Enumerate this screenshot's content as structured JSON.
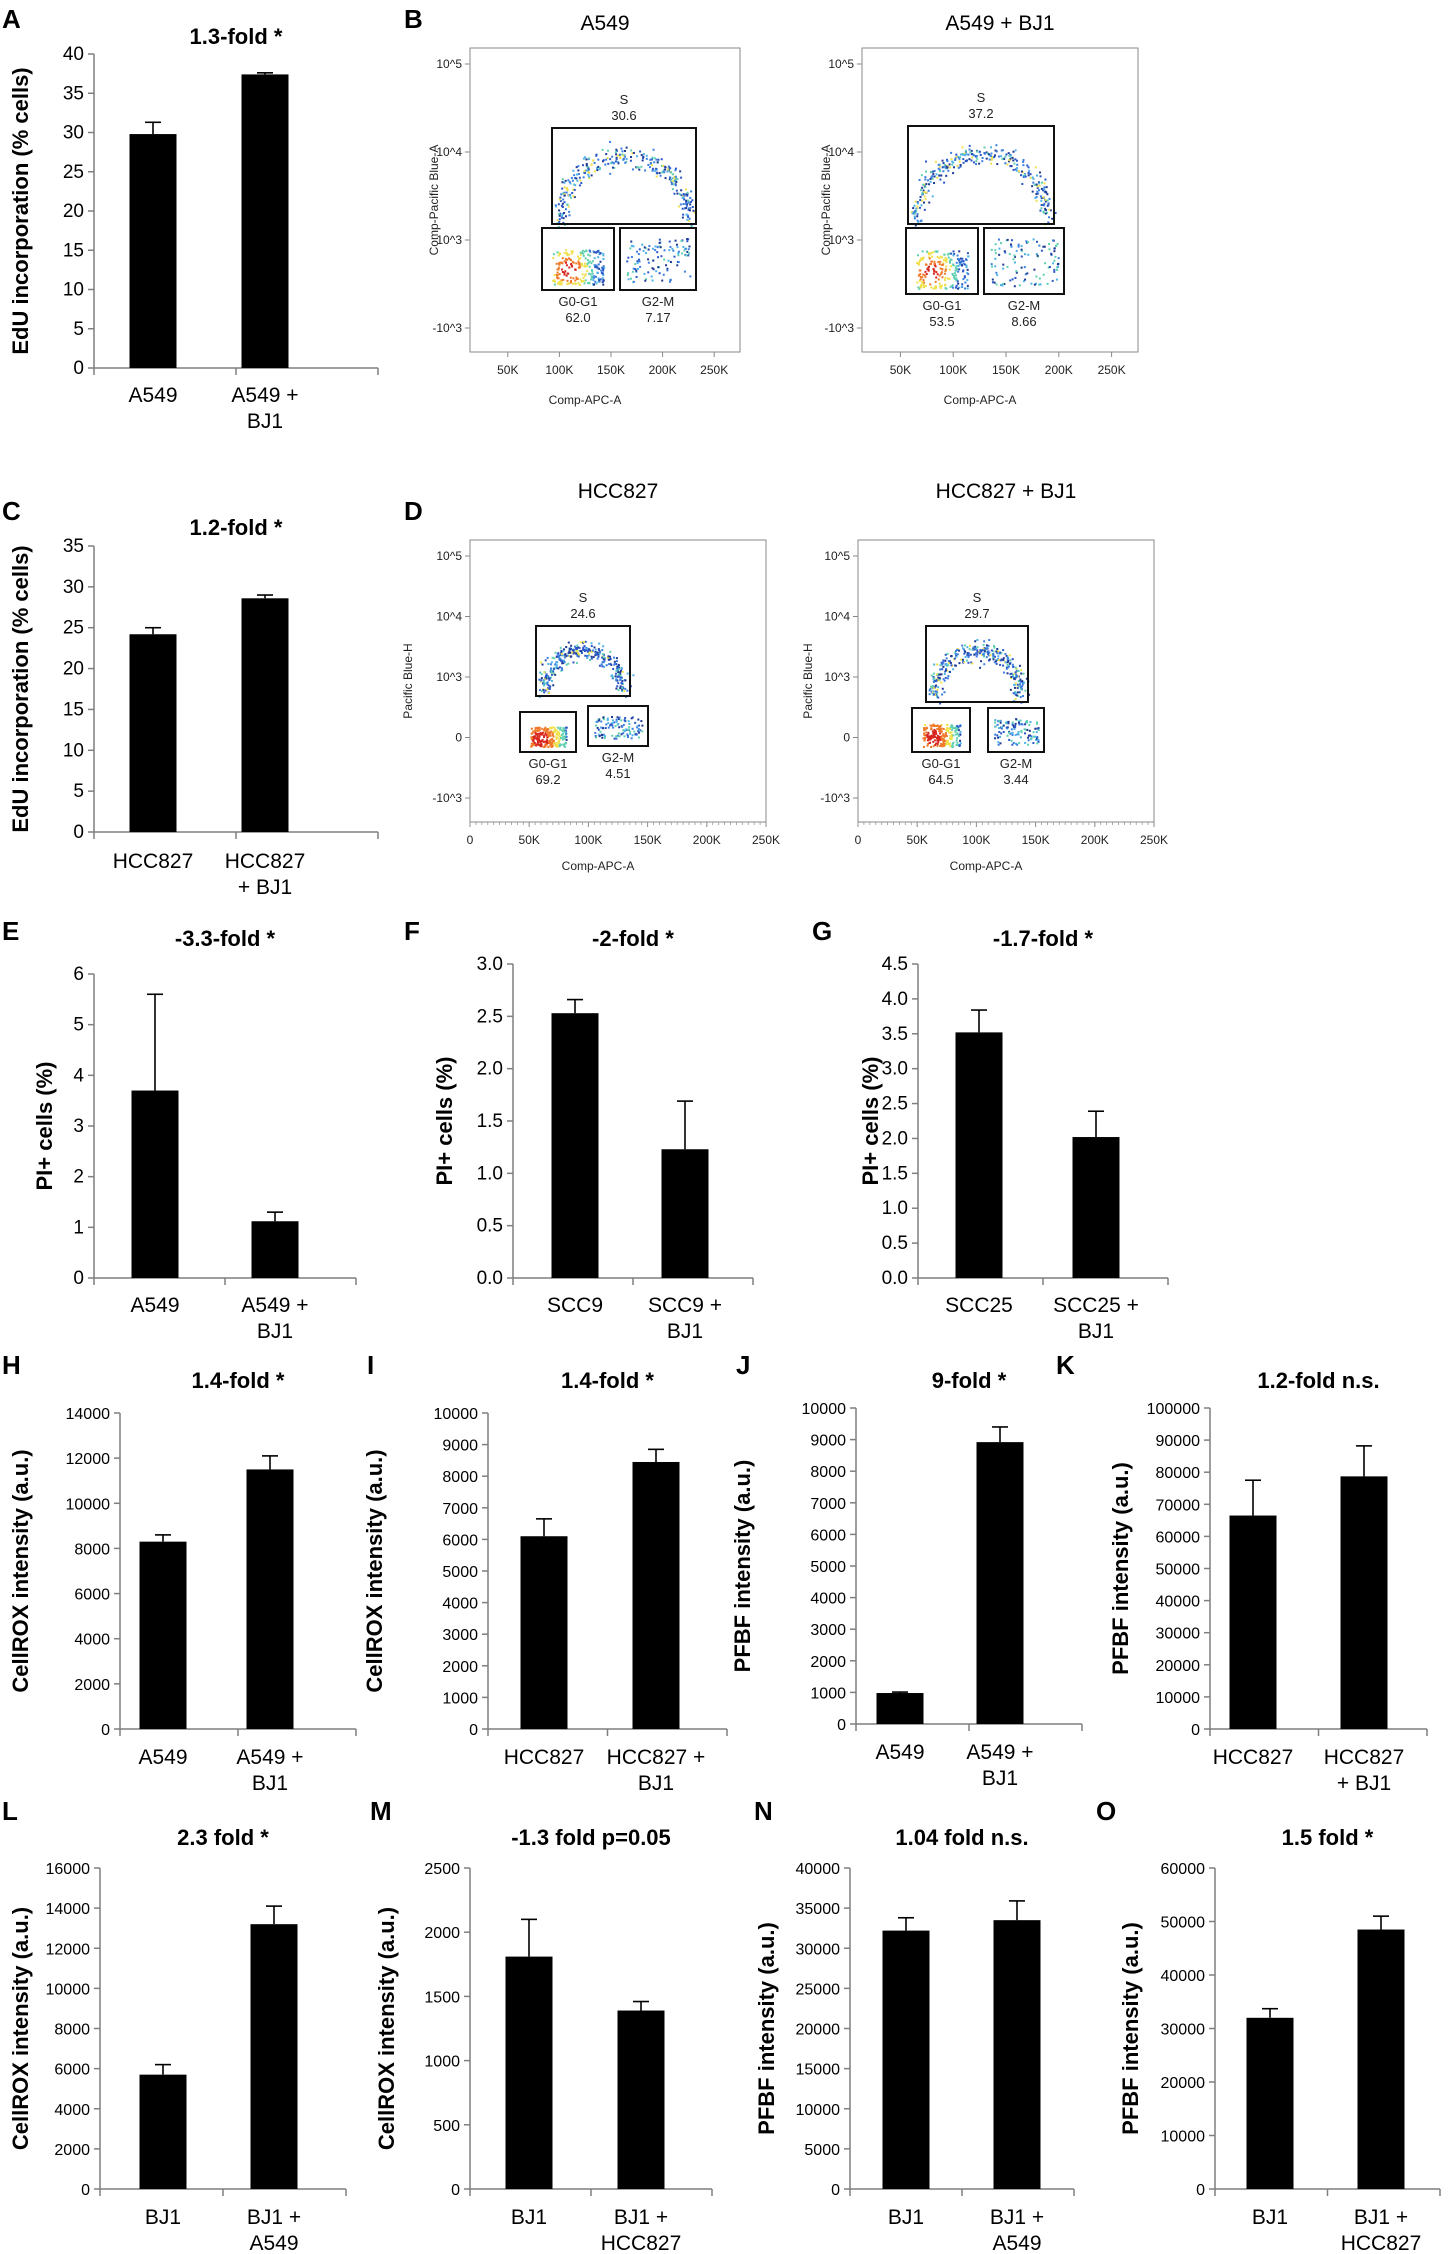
{
  "figure": {
    "panel_labels": [
      "A",
      "B",
      "C",
      "D",
      "E",
      "F",
      "G",
      "H",
      "I",
      "J",
      "K",
      "L",
      "M",
      "N",
      "O"
    ]
  },
  "chart_data": [
    {
      "id": "A",
      "type": "bar",
      "title": "1.3-fold *",
      "ylabel": "EdU incorporation (% cells)",
      "categories": [
        [
          "A549"
        ],
        [
          "A549 +",
          "BJ1"
        ]
      ],
      "values": [
        29.8,
        37.4
      ],
      "errors": [
        1.5,
        0.2
      ],
      "ylim": [
        0,
        40
      ],
      "yticks": [
        0,
        5,
        10,
        15,
        20,
        25,
        30,
        35,
        40
      ],
      "decimals": 0
    },
    {
      "id": "C",
      "type": "bar",
      "title": "1.2-fold *",
      "ylabel": "EdU incorporation (% cells)",
      "categories": [
        [
          "HCC827"
        ],
        [
          "HCC827",
          "+ BJ1"
        ]
      ],
      "values": [
        24.2,
        28.6
      ],
      "errors": [
        0.8,
        0.4
      ],
      "ylim": [
        0,
        35
      ],
      "yticks": [
        0,
        5,
        10,
        15,
        20,
        25,
        30,
        35
      ],
      "decimals": 0
    },
    {
      "id": "E",
      "type": "bar",
      "title": "-3.3-fold *",
      "ylabel": "PI+ cells (%)",
      "categories": [
        [
          "A549"
        ],
        [
          "A549 +",
          "BJ1"
        ]
      ],
      "values": [
        3.7,
        1.12
      ],
      "errors": [
        1.9,
        0.18
      ],
      "ylim": [
        0,
        6
      ],
      "yticks": [
        0,
        1,
        2,
        3,
        4,
        5,
        6
      ],
      "decimals": 0
    },
    {
      "id": "F",
      "type": "bar",
      "title": "-2-fold *",
      "ylabel": "PI+ cells (%)",
      "categories": [
        [
          "SCC9"
        ],
        [
          "SCC9 +",
          "BJ1"
        ]
      ],
      "values": [
        2.53,
        1.23
      ],
      "errors": [
        0.13,
        0.46
      ],
      "ylim": [
        0,
        3
      ],
      "yticks": [
        0,
        0.5,
        1,
        1.5,
        2,
        2.5,
        3
      ],
      "decimals": 1
    },
    {
      "id": "G",
      "type": "bar",
      "title": "-1.7-fold *",
      "ylabel": "PI+ cells (%)",
      "categories": [
        [
          "SCC25"
        ],
        [
          "SCC25 +",
          "BJ1"
        ]
      ],
      "values": [
        3.52,
        2.02
      ],
      "errors": [
        0.32,
        0.37
      ],
      "ylim": [
        0,
        4.5
      ],
      "yticks": [
        0,
        0.5,
        1,
        1.5,
        2,
        2.5,
        3,
        3.5,
        4,
        4.5
      ],
      "decimals": 1
    },
    {
      "id": "H",
      "type": "bar",
      "title": "1.4-fold *",
      "ylabel": "CellROX intensity (a.u.)",
      "categories": [
        [
          "A549"
        ],
        [
          "A549 +",
          "BJ1"
        ]
      ],
      "values": [
        8300,
        11500
      ],
      "errors": [
        300,
        600
      ],
      "ylim": [
        0,
        14000
      ],
      "yticks": [
        0,
        2000,
        4000,
        6000,
        8000,
        10000,
        12000,
        14000
      ],
      "decimals": 0
    },
    {
      "id": "I",
      "type": "bar",
      "title": "1.4-fold *",
      "ylabel": "CellROX intensity (a.u.)",
      "categories": [
        [
          "HCC827"
        ],
        [
          "HCC827 +",
          "BJ1"
        ]
      ],
      "values": [
        6100,
        8450
      ],
      "errors": [
        550,
        400
      ],
      "ylim": [
        0,
        10000
      ],
      "yticks": [
        0,
        1000,
        2000,
        3000,
        4000,
        5000,
        6000,
        7000,
        8000,
        9000,
        10000
      ],
      "decimals": 0
    },
    {
      "id": "J",
      "type": "bar",
      "title": "9-fold *",
      "ylabel": "PFBF intensity (a.u.)",
      "categories": [
        [
          "A549"
        ],
        [
          "A549 +",
          "BJ1"
        ]
      ],
      "values": [
        980,
        8920
      ],
      "errors": [
        30,
        480
      ],
      "ylim": [
        0,
        10000
      ],
      "yticks": [
        0,
        1000,
        2000,
        3000,
        4000,
        5000,
        6000,
        7000,
        8000,
        9000,
        10000
      ],
      "decimals": 0
    },
    {
      "id": "K",
      "type": "bar",
      "title": "1.2-fold  n.s.",
      "ylabel": "PFBF intensity (a.u.)",
      "categories": [
        [
          "HCC827"
        ],
        [
          "HCC827",
          "+ BJ1"
        ]
      ],
      "values": [
        66500,
        78700
      ],
      "errors": [
        11000,
        9500
      ],
      "ylim": [
        0,
        100000
      ],
      "yticks": [
        0,
        10000,
        20000,
        30000,
        40000,
        50000,
        60000,
        70000,
        80000,
        90000,
        100000
      ],
      "decimals": 0
    },
    {
      "id": "L",
      "type": "bar",
      "title": "2.3 fold *",
      "ylabel": "CellROX intensity (a.u.)",
      "categories": [
        [
          "BJ1"
        ],
        [
          "BJ1 +",
          "A549"
        ]
      ],
      "values": [
        5700,
        13200
      ],
      "errors": [
        500,
        900
      ],
      "ylim": [
        0,
        16000
      ],
      "yticks": [
        0,
        2000,
        4000,
        6000,
        8000,
        10000,
        12000,
        14000,
        16000
      ],
      "decimals": 0
    },
    {
      "id": "M",
      "type": "bar",
      "title": "-1.3 fold p=0.05",
      "ylabel": "CellROX intensity (a.u.)",
      "categories": [
        [
          "BJ1"
        ],
        [
          "BJ1 +",
          "HCC827"
        ]
      ],
      "values": [
        1810,
        1390
      ],
      "errors": [
        290,
        70
      ],
      "ylim": [
        0,
        2500
      ],
      "yticks": [
        0,
        500,
        1000,
        1500,
        2000,
        2500
      ],
      "decimals": 0
    },
    {
      "id": "N",
      "type": "bar",
      "title": "1.04 fold  n.s.",
      "ylabel": "PFBF intensity (a.u.)",
      "categories": [
        [
          "BJ1"
        ],
        [
          "BJ1 +",
          "A549"
        ]
      ],
      "values": [
        32200,
        33500
      ],
      "errors": [
        1600,
        2400
      ],
      "ylim": [
        0,
        40000
      ],
      "yticks": [
        0,
        5000,
        10000,
        15000,
        20000,
        25000,
        30000,
        35000,
        40000
      ],
      "decimals": 0
    },
    {
      "id": "O",
      "type": "bar",
      "title": "1.5 fold *",
      "ylabel": "PFBF intensity (a.u.)",
      "categories": [
        [
          "BJ1"
        ],
        [
          "BJ1 +",
          "HCC827"
        ]
      ],
      "values": [
        32000,
        48500
      ],
      "errors": [
        1700,
        2500
      ],
      "ylim": [
        0,
        60000
      ],
      "yticks": [
        0,
        10000,
        20000,
        30000,
        40000,
        50000,
        60000
      ],
      "decimals": 0
    }
  ],
  "flow": {
    "B": {
      "y_axis_label_left": "Comp-Pacific Blue-A",
      "y_axis_label_right": "Comp-Pacific Blue-A",
      "x_axis_label": "Comp-APC-A",
      "x_ticks": [
        "50K",
        "100K",
        "150K",
        "200K",
        "250K"
      ],
      "y_ticks": [
        "10^5",
        "10^4",
        "10^3",
        "-10^3"
      ],
      "plots": [
        {
          "title": "A549",
          "gates": [
            {
              "name": "S",
              "value": "30.6"
            },
            {
              "name": "G0-G1",
              "value": "62.0"
            },
            {
              "name": "G2-M",
              "value": "7.17"
            }
          ]
        },
        {
          "title": "A549 + BJ1",
          "gates": [
            {
              "name": "S",
              "value": "37.2"
            },
            {
              "name": "G0-G1",
              "value": "53.5"
            },
            {
              "name": "G2-M",
              "value": "8.66"
            }
          ]
        }
      ]
    },
    "D": {
      "y_axis_label_left": "Pacific Blue-H",
      "y_axis_label_right": "Pacific Blue-H",
      "x_axis_label": "Comp-APC-A",
      "x_ticks": [
        "0",
        "50K",
        "100K",
        "150K",
        "200K",
        "250K"
      ],
      "y_ticks": [
        "10^5",
        "10^4",
        "10^3",
        "0",
        "-10^3"
      ],
      "plots": [
        {
          "title": "HCC827",
          "gates": [
            {
              "name": "S",
              "value": "24.6"
            },
            {
              "name": "G0-G1",
              "value": "69.2"
            },
            {
              "name": "G2-M",
              "value": "4.51"
            }
          ]
        },
        {
          "title": "HCC827 + BJ1",
          "gates": [
            {
              "name": "S",
              "value": "29.7"
            },
            {
              "name": "G0-G1",
              "value": "64.5"
            },
            {
              "name": "G2-M",
              "value": "3.44"
            }
          ]
        }
      ]
    }
  }
}
